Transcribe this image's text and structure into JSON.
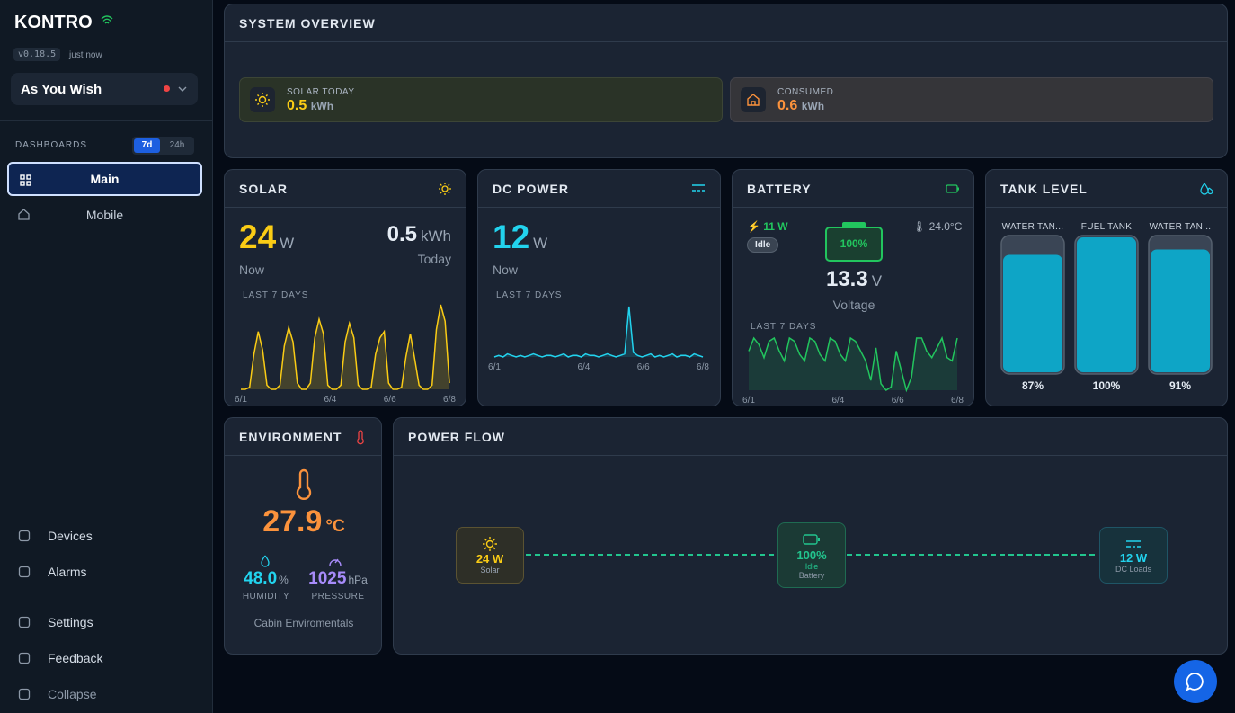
{
  "sidebar": {
    "logo": "KONTRO",
    "version": "v0.18.5",
    "updated": "just now",
    "vessel": "As You Wish",
    "dashboards_label": "DASHBOARDS",
    "ranges": [
      "7d",
      "24h"
    ],
    "nav": [
      "Main",
      "Mobile"
    ],
    "bottom": [
      "Devices",
      "Alarms",
      "Settings",
      "Feedback",
      "Collapse"
    ]
  },
  "overview": {
    "title": "SYSTEM OVERVIEW",
    "solar": {
      "label": "SOLAR TODAY",
      "value": "0.5",
      "unit": "kWh"
    },
    "consumed": {
      "label": "CONSUMED",
      "value": "0.6",
      "unit": "kWh"
    }
  },
  "solar": {
    "title": "SOLAR",
    "now": {
      "value": "24",
      "unit": "W",
      "label": "Now"
    },
    "today": {
      "value": "0.5",
      "unit": "kWh",
      "label": "Today"
    },
    "chart": {
      "label": "LAST 7 DAYS",
      "xticks": [
        "6/1",
        "6/4",
        "6/6",
        "6/8"
      ],
      "values": [
        1,
        1,
        2,
        18,
        29,
        20,
        3,
        1,
        1,
        3,
        22,
        31,
        24,
        4,
        1,
        1,
        4,
        26,
        35,
        28,
        3,
        1,
        1,
        3,
        24,
        33,
        26,
        3,
        1,
        1,
        2,
        18,
        26,
        29,
        4,
        1,
        1,
        2,
        17,
        28,
        16,
        3,
        1,
        1,
        3,
        30,
        42,
        34,
        4
      ]
    }
  },
  "dc_power": {
    "title": "DC POWER",
    "now": {
      "value": "12",
      "unit": "W",
      "label": "Now"
    },
    "chart": {
      "label": "LAST 7 DAYS",
      "xticks": [
        "6/1",
        "6/4",
        "6/6",
        "6/8"
      ],
      "values": [
        5,
        6,
        5,
        7,
        6,
        5,
        6,
        5,
        6,
        7,
        6,
        5,
        6,
        6,
        5,
        6,
        7,
        5,
        6,
        6,
        5,
        7,
        6,
        6,
        5,
        6,
        7,
        6,
        5,
        6,
        7,
        38,
        8,
        6,
        5,
        6,
        7,
        5,
        6,
        5,
        6,
        7,
        5,
        6,
        6,
        5,
        7,
        6,
        5
      ]
    }
  },
  "battery": {
    "title": "BATTERY",
    "power": "11 W",
    "state": "Idle",
    "soc": "100%",
    "temperature": "24.0°C",
    "voltage": {
      "value": "13.3",
      "unit": "V",
      "label": "Voltage"
    },
    "chart": {
      "label": "LAST 7 DAYS",
      "xticks": [
        "6/1",
        "6/4",
        "6/6",
        "6/8"
      ],
      "values": [
        13.2,
        13.6,
        13.4,
        13.0,
        13.5,
        13.6,
        13.2,
        12.9,
        13.6,
        13.5,
        13.1,
        12.9,
        13.6,
        13.5,
        13.1,
        12.9,
        13.6,
        13.5,
        13.1,
        12.9,
        13.6,
        13.5,
        13.2,
        12.9,
        12.3,
        13.3,
        12.2,
        12.0,
        12.1,
        13.2,
        12.6,
        12.0,
        12.4,
        13.6,
        13.6,
        13.2,
        13.0,
        13.3,
        13.6,
        13.0,
        12.9,
        13.6
      ]
    }
  },
  "tanks": {
    "title": "TANK LEVEL",
    "names": [
      "WATER TAN...",
      "FUEL TANK",
      "WATER TAN..."
    ],
    "values": [
      87,
      100,
      91
    ],
    "value_labels": [
      "87%",
      "100%",
      "91%"
    ]
  },
  "environment": {
    "title": "ENVIRONMENT",
    "temperature": "27.9",
    "temperature_unit": "°C",
    "humidity": {
      "value": "48.0",
      "unit": "%",
      "label": "HUMIDITY"
    },
    "pressure": {
      "value": "1025",
      "unit": "hPa",
      "label": "PRESSURE"
    },
    "footer": "Cabin Enviromentals"
  },
  "power_flow": {
    "title": "POWER FLOW",
    "solar": {
      "value": "24 W",
      "label": "Solar"
    },
    "battery": {
      "value": "100%",
      "state": "Idle",
      "label": "Battery"
    },
    "dc": {
      "value": "12 W",
      "label": "DC Loads"
    }
  }
}
